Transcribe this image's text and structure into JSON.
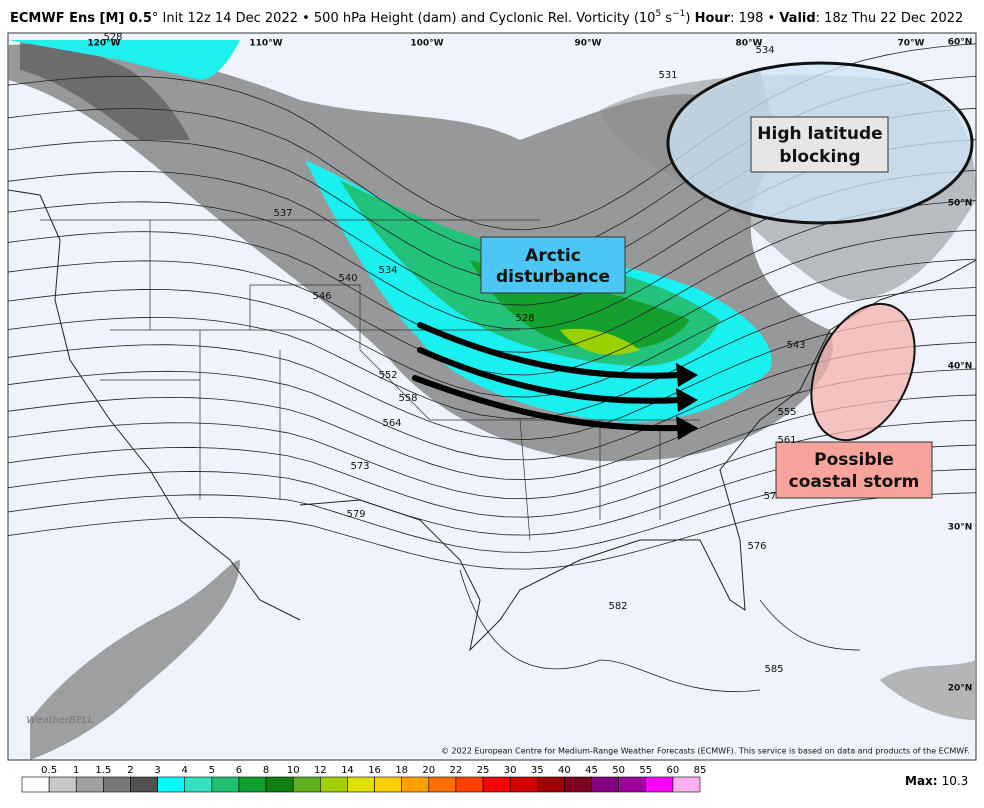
{
  "header": {
    "parts": [
      {
        "t": "ECMWF Ens [M] 0.5",
        "s": "b"
      },
      {
        "t": "° Init 12z 14 Dec 2022 • 500 hPa Height (dam) and Cyclonic Rel. Vorticity (10",
        "s": "n"
      },
      {
        "t": "5",
        "s": "sup"
      },
      {
        "t": " s",
        "s": "n"
      },
      {
        "t": "−1",
        "s": "sup"
      },
      {
        "t": ") ",
        "s": "n"
      },
      {
        "t": "Hour",
        "s": "b"
      },
      {
        "t": ": 198 • ",
        "s": "n"
      },
      {
        "t": "Valid",
        "s": "b"
      },
      {
        "t": ": 18z Thu 22 Dec 2022",
        "s": "n"
      }
    ]
  },
  "map": {
    "lon_labels": [
      "120°W",
      "110°W",
      "100°W",
      "90°W",
      "80°W",
      "70°W"
    ],
    "lat_labels": [
      "60°N",
      "50°N",
      "40°N",
      "30°N",
      "20°N"
    ],
    "contour_labels": [
      528,
      531,
      534,
      537,
      540,
      546,
      534,
      528,
      552,
      558,
      564,
      573,
      579,
      576,
      582,
      585,
      543,
      555,
      561,
      57
    ],
    "annotations": {
      "arctic": [
        "Arctic",
        "disturbance"
      ],
      "blocking": [
        "High latitude",
        "blocking"
      ],
      "coastal": [
        "Possible",
        "coastal storm"
      ]
    },
    "watermark": "WeatherBELL",
    "copyright": "© 2022 European Centre for Medium-Range Weather Forecasts (ECMWF). This service is based on data and products of the ECMWF."
  },
  "colorbar": {
    "ticks": [
      0.5,
      1,
      1.5,
      2,
      3,
      4,
      5,
      6,
      8,
      10,
      12,
      14,
      16,
      18,
      20,
      22,
      25,
      30,
      35,
      40,
      45,
      50,
      55,
      60,
      85
    ],
    "colors": [
      "#ffffff",
      "#c8c8c8",
      "#a0a0a0",
      "#787878",
      "#505050",
      "#00ffff",
      "#33e0c0",
      "#20c070",
      "#10a030",
      "#108010",
      "#60b020",
      "#a0d000",
      "#e0e000",
      "#ffd000",
      "#ffa000",
      "#ff7000",
      "#ff4000",
      "#ff0000",
      "#d00000",
      "#a00000",
      "#800020",
      "#800080",
      "#a000a0",
      "#ff00ff",
      "#ffb0f0"
    ],
    "max_label": "Max:",
    "max_value": 10.3
  }
}
